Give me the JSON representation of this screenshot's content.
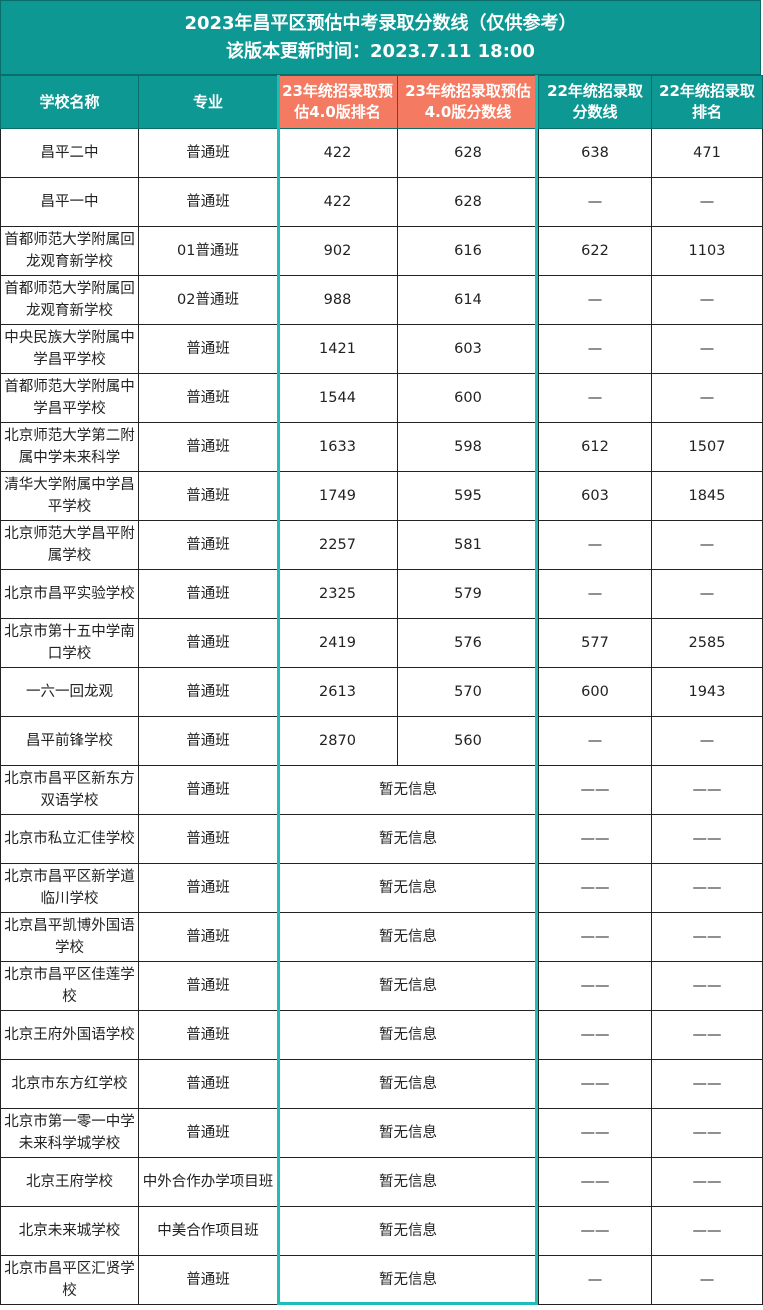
{
  "title": {
    "line1": "2023年昌平区预估中考录取分数线（仅供参考）",
    "line2": "该版本更新时间：2023.7.11 18:00"
  },
  "colors": {
    "header_bg": "#0e9893",
    "highlight_header_bg": "#f47b62",
    "highlight_border": "#1fbcb8"
  },
  "headers": [
    "学校名称",
    "专业",
    "23年统招录取预估4.0版排名",
    "23年统招录取预估4.0版分数线",
    "22年统招录取分数线",
    "22年统招录取排名"
  ],
  "rows": [
    {
      "school": "昌平二中",
      "major": "普通班",
      "rank23": "422",
      "score23": "628",
      "score22": "638",
      "rank22": "471"
    },
    {
      "school": "昌平一中",
      "major": "普通班",
      "rank23": "422",
      "score23": "628",
      "score22": "—",
      "rank22": "—"
    },
    {
      "school": "首都师范大学附属回龙观育新学校",
      "major": "01普通班",
      "rank23": "902",
      "score23": "616",
      "score22": "622",
      "rank22": "1103"
    },
    {
      "school": "首都师范大学附属回龙观育新学校",
      "major": "02普通班",
      "rank23": "988",
      "score23": "614",
      "score22": "—",
      "rank22": "—"
    },
    {
      "school": "中央民族大学附属中学昌平学校",
      "major": "普通班",
      "rank23": "1421",
      "score23": "603",
      "score22": "—",
      "rank22": "—"
    },
    {
      "school": "首都师范大学附属中学昌平学校",
      "major": "普通班",
      "rank23": "1544",
      "score23": "600",
      "score22": "—",
      "rank22": "—"
    },
    {
      "school": "北京师范大学第二附属中学未来科学",
      "major": "普通班",
      "rank23": "1633",
      "score23": "598",
      "score22": "612",
      "rank22": "1507"
    },
    {
      "school": "清华大学附属中学昌平学校",
      "major": "普通班",
      "rank23": "1749",
      "score23": "595",
      "score22": "603",
      "rank22": "1845"
    },
    {
      "school": "北京师范大学昌平附属学校",
      "major": "普通班",
      "rank23": "2257",
      "score23": "581",
      "score22": "—",
      "rank22": "—"
    },
    {
      "school": "北京市昌平实验学校",
      "major": "普通班",
      "rank23": "2325",
      "score23": "579",
      "score22": "—",
      "rank22": "—"
    },
    {
      "school": "北京市第十五中学南口学校",
      "major": "普通班",
      "rank23": "2419",
      "score23": "576",
      "score22": "577",
      "rank22": "2585"
    },
    {
      "school": "一六一回龙观",
      "major": "普通班",
      "rank23": "2613",
      "score23": "570",
      "score22": "600",
      "rank22": "1943"
    },
    {
      "school": "昌平前锋学校",
      "major": "普通班",
      "rank23": "2870",
      "score23": "560",
      "score22": "—",
      "rank22": "—"
    },
    {
      "school": "北京市昌平区新东方双语学校",
      "major": "普通班",
      "info": "暂无信息",
      "score22": "——",
      "rank22": "——"
    },
    {
      "school": "北京市私立汇佳学校",
      "major": "普通班",
      "info": "暂无信息",
      "score22": "——",
      "rank22": "——"
    },
    {
      "school": "北京市昌平区新学道临川学校",
      "major": "普通班",
      "info": "暂无信息",
      "score22": "——",
      "rank22": "——"
    },
    {
      "school": "北京昌平凯博外国语学校",
      "major": "普通班",
      "info": "暂无信息",
      "score22": "——",
      "rank22": "——"
    },
    {
      "school": "北京市昌平区佳莲学校",
      "major": "普通班",
      "info": "暂无信息",
      "score22": "——",
      "rank22": "——"
    },
    {
      "school": "北京王府外国语学校",
      "major": "普通班",
      "info": "暂无信息",
      "score22": "——",
      "rank22": "——"
    },
    {
      "school": "北京市东方红学校",
      "major": "普通班",
      "info": "暂无信息",
      "score22": "——",
      "rank22": "——"
    },
    {
      "school": "北京市第一零一中学未来科学城学校",
      "major": "普通班",
      "info": "暂无信息",
      "score22": "——",
      "rank22": "——"
    },
    {
      "school": "北京王府学校",
      "major": "中外合作办学项目班",
      "info": "暂无信息",
      "score22": "——",
      "rank22": "——"
    },
    {
      "school": "北京未来城学校",
      "major": "中美合作项目班",
      "info": "暂无信息",
      "score22": "——",
      "rank22": "——"
    },
    {
      "school": "北京市昌平区汇贤学校",
      "major": "普通班",
      "info": "暂无信息",
      "score22": "—",
      "rank22": "—"
    }
  ]
}
